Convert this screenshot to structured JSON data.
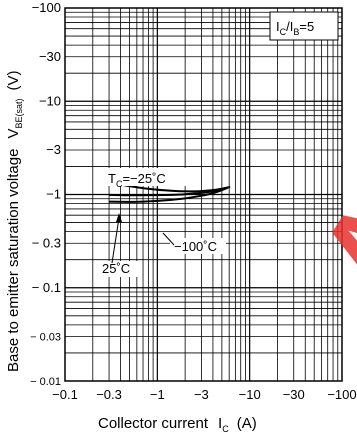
{
  "chart_data": {
    "type": "line",
    "log_x": true,
    "log_y": true,
    "xlim": [
      -0.1,
      -100
    ],
    "ylim": [
      -0.01,
      -100
    ],
    "grid": true,
    "x_ticks": [
      "−0.1",
      "−0.3",
      "−1",
      "−3",
      "−10",
      "−30",
      "−100"
    ],
    "y_ticks": [
      "−100",
      "−30",
      "−10",
      "−3",
      "−1",
      "− 0.3",
      "− 0.1",
      "− 0.03",
      "− 0.01"
    ],
    "xlabel": {
      "main": "Collector current",
      "var": "I",
      "sub": "C",
      "unit": "(A)"
    },
    "ylabel": {
      "main": "Base to emitter saturation voltage",
      "var": "V",
      "sub": "BE(sat)",
      "unit": "(V)"
    },
    "condition": {
      "a": "I",
      "a_sub": "C",
      "sep": "/I",
      "b_sub": "B",
      "rest": "=5"
    },
    "series": [
      {
        "label_pre": "T",
        "label_sub": "C",
        "label": "=−25˚C",
        "x": [
          -0.3,
          -0.5,
          -1,
          -2,
          -4,
          -6
        ],
        "y": [
          -1.35,
          -1.22,
          -1.12,
          -1.07,
          -1.1,
          -1.2
        ]
      },
      {
        "label": "−100˚C",
        "x": [
          -0.3,
          -0.5,
          -1,
          -2,
          -4,
          -6
        ],
        "y": [
          -0.84,
          -0.83,
          -0.85,
          -0.9,
          -1.02,
          -1.2
        ]
      },
      {
        "label": "25˚C",
        "x": [
          -0.3,
          -0.5,
          -1,
          -2,
          -4,
          -6
        ],
        "y": [
          -0.99,
          -0.98,
          -0.98,
          -1.0,
          -1.07,
          -1.2
        ]
      }
    ]
  },
  "colors": {
    "line": "#000000",
    "grid": "#000000",
    "watermark": "#e8322f"
  },
  "watermark": "Ala"
}
